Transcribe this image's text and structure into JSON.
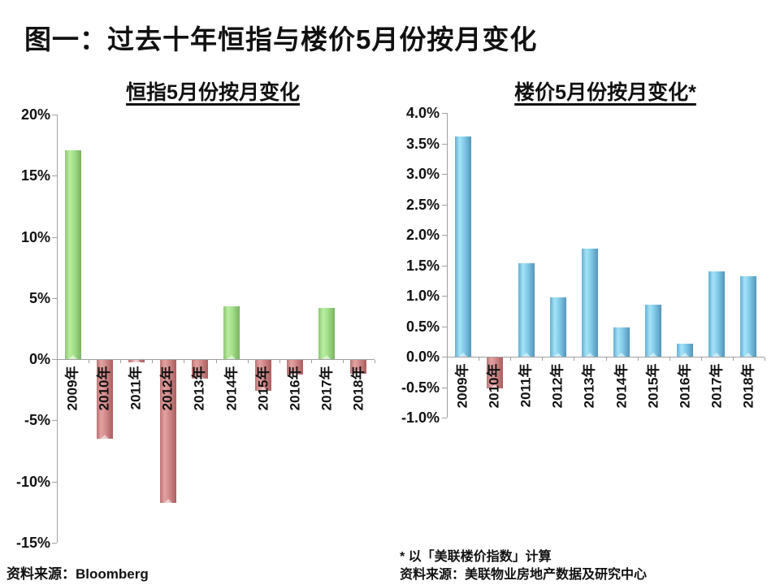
{
  "page": {
    "title": "图一：过去十年恒指与楼价5月份按月变化"
  },
  "footnotes": {
    "left_source": "资料来源：Bloomberg",
    "right_note": "* 以「美联楼价指数」计算",
    "right_source": "资料来源：美联物业房地产数据及研究中心"
  },
  "colors": {
    "positive_green": "#9ADC82",
    "negative_red": "#CC8080",
    "property_blue": "#7CC9E8",
    "axis_gray": "#A0A0A0"
  },
  "chart_data": [
    {
      "type": "bar",
      "title": "恒指5月份按月变化",
      "categories": [
        "2009年",
        "2010年",
        "2011年",
        "2012年",
        "2013年",
        "2014年",
        "2015年",
        "2016年",
        "2017年",
        "2018年"
      ],
      "values": [
        17.1,
        -6.4,
        -0.2,
        -11.7,
        -1.5,
        4.3,
        -2.5,
        -1.2,
        4.2,
        -1.1
      ],
      "unit": "%",
      "ylim": [
        -15,
        20
      ],
      "ytick_step": 5,
      "ytick_labels": [
        "20%",
        "15%",
        "10%",
        "5%",
        "0%",
        "-5%",
        "-10%",
        "-15%"
      ],
      "positive_color": "green",
      "negative_color": "red",
      "grid": false,
      "legend": "none"
    },
    {
      "type": "bar",
      "title": "楼价5月份按月变化*",
      "categories": [
        "2009年",
        "2010年",
        "2011年",
        "2012年",
        "2013年",
        "2014年",
        "2015年",
        "2016年",
        "2017年",
        "2018年"
      ],
      "values": [
        3.62,
        -0.5,
        1.53,
        0.97,
        1.78,
        0.48,
        0.85,
        0.22,
        1.4,
        1.32
      ],
      "unit": "%",
      "ylim": [
        -1,
        4
      ],
      "ytick_step": 0.5,
      "ytick_labels": [
        "4.0%",
        "3.5%",
        "3.0%",
        "2.5%",
        "2.0%",
        "1.5%",
        "1.0%",
        "0.5%",
        "0.0%",
        "-0.5%",
        "-1.0%"
      ],
      "positive_color": "blue",
      "negative_color": "red",
      "grid": false,
      "legend": "none"
    }
  ]
}
